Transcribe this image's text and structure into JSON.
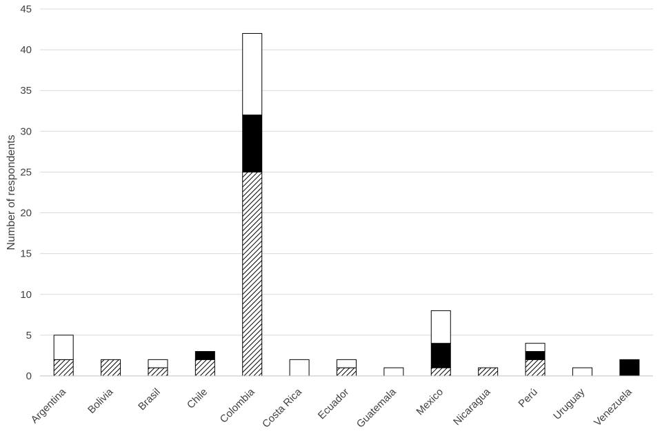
{
  "chart_data": {
    "type": "bar",
    "stacked": true,
    "title": "",
    "xlabel": "",
    "ylabel": "Number of respondents",
    "ylim": [
      0,
      45
    ],
    "yticks": [
      0,
      5,
      10,
      15,
      20,
      25,
      30,
      35,
      40,
      45
    ],
    "grid": true,
    "legend": "none",
    "categories": [
      "Argentina",
      "Bolivia",
      "Brasil",
      "Chile",
      "Colombia",
      "Costa Rica",
      "Ecuador",
      "Guatemala",
      "Mexico",
      "Nicaragua",
      "Perú",
      "Uruguay",
      "Venezuela"
    ],
    "series": [
      {
        "fill": "hatched",
        "color": "#000000",
        "values": [
          2,
          2,
          1,
          2,
          25,
          0,
          1,
          0,
          1,
          1,
          2,
          0,
          0
        ]
      },
      {
        "fill": "solid-black",
        "color": "#000000",
        "values": [
          0,
          0,
          0,
          1,
          7,
          0,
          0,
          0,
          3,
          0,
          1,
          0,
          2
        ]
      },
      {
        "fill": "white",
        "color": "#ffffff",
        "values": [
          3,
          0,
          1,
          0,
          10,
          2,
          1,
          1,
          4,
          0,
          1,
          1,
          0
        ]
      }
    ]
  }
}
